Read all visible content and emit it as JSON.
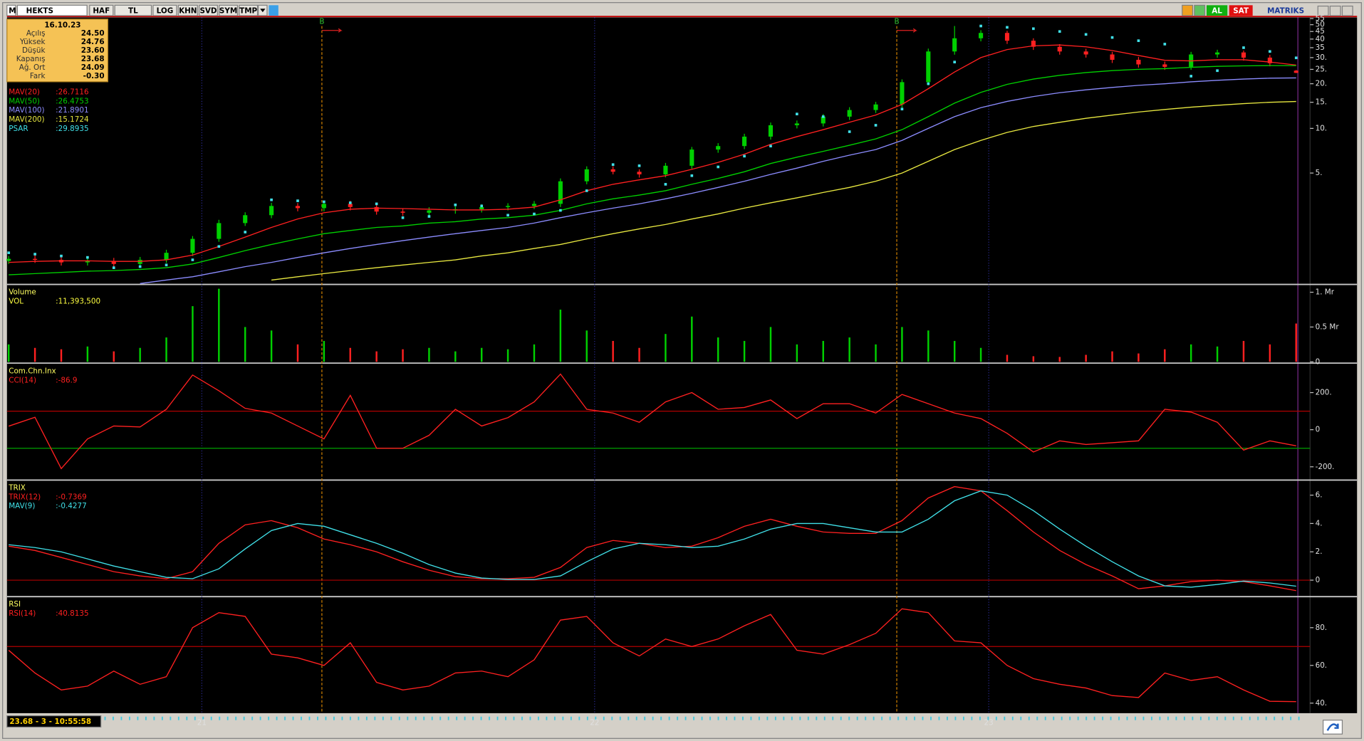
{
  "toolbar": {
    "logo": "M",
    "symbol": "HEKTS",
    "buttons": [
      "HAF",
      "TL",
      "LOG",
      "KHN",
      "SVD",
      "SYM",
      "TMP"
    ],
    "buy": "AL",
    "sell": "SAT",
    "brand": "MATRIKS"
  },
  "info": {
    "date": "16.10.23",
    "rows": [
      [
        "Açılış",
        "24.50"
      ],
      [
        "Yüksek",
        "24.76"
      ],
      [
        "Düşük",
        "23.60"
      ],
      [
        "Kapanış",
        "23.68"
      ],
      [
        "Ağ. Ort",
        "24.09"
      ],
      [
        "Fark",
        "-0.30"
      ]
    ]
  },
  "status": "23.68 - 3 - 10:55:58",
  "time_axis": {
    "labels": [
      {
        "value": 7.35,
        "label": "21"
      },
      {
        "value": 22.3,
        "label": "22"
      },
      {
        "value": 37.3,
        "label": "23"
      }
    ]
  },
  "signals": [
    {
      "value": 11.92,
      "label": "B"
    },
    {
      "value": 33.8,
      "label": "B"
    }
  ],
  "panels": [
    {
      "type": "candlestick",
      "log_scale": true,
      "ylim": [
        0.9,
        56
      ],
      "yticks": [
        {
          "value": 5,
          "label": "5."
        },
        {
          "value": 10,
          "label": "10."
        },
        {
          "value": 15,
          "label": "15."
        },
        {
          "value": 20,
          "label": "20."
        },
        {
          "value": 25,
          "label": "25."
        },
        {
          "value": 30,
          "label": "30."
        },
        35,
        40,
        45,
        50,
        55
      ],
      "candles": {
        "up_color": "#00d000",
        "down_color": "#ff2020",
        "open": [
          1.28,
          1.32,
          1.3,
          1.25,
          1.28,
          1.22,
          1.3,
          1.45,
          1.8,
          2.3,
          2.6,
          3.0,
          2.9,
          3.1,
          2.95,
          2.75,
          2.7,
          2.8,
          2.85,
          2.95,
          3.0,
          3.1,
          4.4,
          5.3,
          5.1,
          4.9,
          5.6,
          7.2,
          7.6,
          8.8,
          10.5,
          10.8,
          12.0,
          13.3,
          14.5,
          20.5,
          33.0,
          40.5,
          44.0,
          39.0,
          35.5,
          33.0,
          31.5,
          29.0,
          27.0,
          26.0,
          31.5,
          32.5,
          30.0,
          24.5
        ],
        "high": [
          1.38,
          1.39,
          1.37,
          1.34,
          1.34,
          1.36,
          1.52,
          1.88,
          2.42,
          2.72,
          3.15,
          3.14,
          3.25,
          3.25,
          3.1,
          2.88,
          2.94,
          2.98,
          3.08,
          3.13,
          3.24,
          4.6,
          5.55,
          5.55,
          5.3,
          5.85,
          7.5,
          7.95,
          9.2,
          10.95,
          11.3,
          12.5,
          13.9,
          15.1,
          21.4,
          34.5,
          49.0,
          45.9,
          45.5,
          40.5,
          37.0,
          34.4,
          32.8,
          30.3,
          28.2,
          32.8,
          33.9,
          33.5,
          31.3,
          24.76
        ],
        "low": [
          1.22,
          1.24,
          1.19,
          1.19,
          1.16,
          1.16,
          1.24,
          1.38,
          1.72,
          2.2,
          2.48,
          2.76,
          2.76,
          2.8,
          2.62,
          2.57,
          2.57,
          2.66,
          2.71,
          2.8,
          2.86,
          2.95,
          4.2,
          4.9,
          4.66,
          4.68,
          5.35,
          6.85,
          7.25,
          8.4,
          10.0,
          10.3,
          11.4,
          12.7,
          13.8,
          19.5,
          31.4,
          38.6,
          37.1,
          33.8,
          31.4,
          30.0,
          27.6,
          25.7,
          24.8,
          24.8,
          30.0,
          28.6,
          26.2,
          23.6
        ],
        "close": [
          1.32,
          1.3,
          1.25,
          1.28,
          1.22,
          1.3,
          1.45,
          1.8,
          2.3,
          2.6,
          3.0,
          2.9,
          3.1,
          2.95,
          2.75,
          2.7,
          2.8,
          2.85,
          2.95,
          3.0,
          3.1,
          4.4,
          5.3,
          5.1,
          4.9,
          5.6,
          7.2,
          7.6,
          8.8,
          10.5,
          10.8,
          12.0,
          13.3,
          14.5,
          20.5,
          33.0,
          40.5,
          44.0,
          39.0,
          35.5,
          33.0,
          31.5,
          29.0,
          27.0,
          26.0,
          31.5,
          32.5,
          30.0,
          27.5,
          23.68
        ]
      },
      "series": [
        {
          "name": "MAV(20)",
          "value_label": ":26.7116",
          "color": "#ff2020",
          "style": "line",
          "values": [
            1.25,
            1.27,
            1.28,
            1.28,
            1.27,
            1.27,
            1.3,
            1.4,
            1.6,
            1.85,
            2.15,
            2.45,
            2.7,
            2.85,
            2.9,
            2.88,
            2.85,
            2.82,
            2.82,
            2.85,
            2.95,
            3.3,
            3.8,
            4.2,
            4.5,
            4.8,
            5.3,
            5.9,
            6.7,
            7.8,
            8.8,
            9.8,
            11.0,
            12.3,
            14.5,
            18.5,
            24.0,
            30.0,
            34.0,
            36.0,
            36.5,
            35.5,
            33.5,
            31.0,
            28.8,
            28.5,
            29.0,
            29.0,
            28.0,
            26.71
          ]
        },
        {
          "name": "MAV(50)",
          "value_label": ":26.4753",
          "color": "#00d000",
          "style": "line",
          "values": [
            1.03,
            1.05,
            1.07,
            1.09,
            1.1,
            1.12,
            1.15,
            1.22,
            1.35,
            1.5,
            1.65,
            1.8,
            1.95,
            2.05,
            2.15,
            2.2,
            2.3,
            2.35,
            2.45,
            2.5,
            2.6,
            2.8,
            3.1,
            3.35,
            3.55,
            3.8,
            4.2,
            4.6,
            5.1,
            5.8,
            6.4,
            7.0,
            7.7,
            8.5,
            9.8,
            12.0,
            14.8,
            17.5,
            19.8,
            21.5,
            22.8,
            23.8,
            24.5,
            25.0,
            25.3,
            25.8,
            26.2,
            26.4,
            26.5,
            26.48
          ]
        },
        {
          "name": "MAV(100)",
          "value_label": ":21.8901",
          "color": "#8c8cff",
          "style": "line",
          "values": [
            null,
            null,
            null,
            null,
            null,
            0.9,
            0.95,
            1.0,
            1.08,
            1.17,
            1.25,
            1.35,
            1.45,
            1.55,
            1.65,
            1.75,
            1.85,
            1.95,
            2.05,
            2.15,
            2.3,
            2.5,
            2.7,
            2.9,
            3.1,
            3.35,
            3.65,
            4.0,
            4.4,
            4.9,
            5.4,
            6.0,
            6.6,
            7.2,
            8.3,
            10.0,
            12.0,
            13.8,
            15.2,
            16.4,
            17.4,
            18.2,
            18.9,
            19.5,
            20.0,
            20.6,
            21.1,
            21.5,
            21.8,
            21.89
          ]
        },
        {
          "name": "MAV(200)",
          "value_label": ":15.1724",
          "color": "#e8e840",
          "style": "line",
          "values": [
            null,
            null,
            null,
            null,
            null,
            null,
            null,
            null,
            null,
            null,
            0.95,
            1.0,
            1.05,
            1.1,
            1.15,
            1.2,
            1.25,
            1.3,
            1.38,
            1.45,
            1.55,
            1.65,
            1.8,
            1.95,
            2.1,
            2.25,
            2.45,
            2.65,
            2.9,
            3.15,
            3.4,
            3.7,
            4.0,
            4.4,
            5.0,
            6.0,
            7.2,
            8.3,
            9.4,
            10.3,
            11.0,
            11.7,
            12.3,
            12.9,
            13.4,
            13.9,
            14.3,
            14.7,
            15.0,
            15.17
          ]
        },
        {
          "name": "PSAR",
          "value_label": ":29.8935",
          "color": "#40e0e8",
          "style": "dots",
          "values": [
            1.45,
            1.42,
            1.38,
            1.35,
            1.15,
            1.17,
            1.2,
            1.3,
            1.6,
            2.0,
            3.3,
            3.25,
            3.2,
            3.15,
            3.1,
            2.5,
            2.55,
            3.05,
            3.0,
            2.6,
            2.65,
            2.8,
            3.8,
            5.7,
            5.6,
            4.2,
            4.8,
            5.5,
            6.5,
            7.6,
            12.5,
            12.0,
            9.5,
            10.5,
            13.5,
            20.0,
            28.0,
            49.0,
            48.0,
            47.0,
            45.0,
            43.0,
            41.0,
            39.0,
            37.0,
            22.5,
            24.5,
            35.0,
            33.0,
            29.89
          ]
        }
      ]
    },
    {
      "type": "bar",
      "title": "Volume",
      "ylim": [
        0,
        1100000
      ],
      "yticks": [
        0,
        {
          "value": 500000,
          "label": "0.5 Mr"
        },
        {
          "value": 1000000,
          "label": "1. Mr"
        }
      ],
      "series": [
        {
          "name": "VOL",
          "value_label": ":11,393,500",
          "color": "#ffff40",
          "style": "bars",
          "values": [
            250000,
            200000,
            180000,
            220000,
            150000,
            200000,
            350000,
            800000,
            1050000,
            500000,
            450000,
            250000,
            300000,
            200000,
            150000,
            180000,
            200000,
            150000,
            200000,
            180000,
            250000,
            750000,
            450000,
            300000,
            200000,
            400000,
            650000,
            350000,
            300000,
            500000,
            250000,
            300000,
            350000,
            250000,
            500000,
            450000,
            300000,
            200000,
            100000,
            80000,
            70000,
            100000,
            150000,
            120000,
            180000,
            250000,
            220000,
            300000,
            250000,
            550000
          ]
        }
      ]
    },
    {
      "type": "line",
      "title": "Com.Chn.Inx",
      "ylim": [
        -267,
        352
      ],
      "yticks": [
        {
          "value": 200,
          "label": "200."
        },
        0,
        {
          "value": -200,
          "label": "-200."
        }
      ],
      "levels": [
        {
          "value": 100,
          "color": "#b00000"
        },
        {
          "value": -100,
          "color": "#00a000"
        }
      ],
      "series": [
        {
          "name": "CCI(14)",
          "value_label": ":-86.9",
          "color": "#ff2020",
          "style": "line",
          "values": [
            19,
            67,
            -210,
            -50,
            20,
            15,
            110,
            295,
            210,
            115,
            90,
            20,
            -50,
            185,
            -100,
            -100,
            -30,
            110,
            20,
            65,
            150,
            300,
            110,
            90,
            40,
            150,
            200,
            110,
            120,
            160,
            60,
            140,
            140,
            90,
            190,
            140,
            90,
            60,
            -20,
            -120,
            -60,
            -80,
            -70,
            -60,
            110,
            95,
            40,
            -110,
            -60,
            -86.9
          ]
        }
      ]
    },
    {
      "type": "line",
      "title": "TRIX",
      "ylim": [
        -1.1,
        7.0
      ],
      "yticks": [
        {
          "value": 6,
          "label": "6."
        },
        {
          "value": 4,
          "label": "4."
        },
        {
          "value": 2,
          "label": "2."
        },
        0
      ],
      "levels": [
        {
          "value": 0,
          "color": "#b00000"
        }
      ],
      "series": [
        {
          "name": "TRIX(12)",
          "value_label": ":-0.7369",
          "color": "#ff2020",
          "style": "line",
          "values": [
            2.4,
            2.1,
            1.6,
            1.1,
            0.6,
            0.3,
            0.1,
            0.6,
            2.6,
            3.9,
            4.2,
            3.7,
            2.9,
            2.5,
            2.0,
            1.3,
            0.7,
            0.25,
            0.1,
            0.1,
            0.2,
            0.9,
            2.3,
            2.8,
            2.6,
            2.3,
            2.4,
            3.0,
            3.8,
            4.3,
            3.8,
            3.4,
            3.3,
            3.3,
            4.2,
            5.8,
            6.6,
            6.3,
            4.9,
            3.4,
            2.1,
            1.1,
            0.3,
            -0.6,
            -0.4,
            -0.1,
            0.0,
            -0.1,
            -0.4,
            -0.7369
          ]
        },
        {
          "name": "MAV(9)",
          "value_label": ":-0.4277",
          "color": "#40e0e8",
          "style": "line",
          "values": [
            2.5,
            2.3,
            2.0,
            1.5,
            1.0,
            0.6,
            0.2,
            0.1,
            0.8,
            2.2,
            3.5,
            4.0,
            3.8,
            3.2,
            2.6,
            1.9,
            1.1,
            0.5,
            0.15,
            0.05,
            0.05,
            0.3,
            1.3,
            2.2,
            2.6,
            2.5,
            2.3,
            2.4,
            2.9,
            3.6,
            4.0,
            4.0,
            3.7,
            3.4,
            3.4,
            4.3,
            5.6,
            6.3,
            6.0,
            4.9,
            3.6,
            2.4,
            1.3,
            0.3,
            -0.4,
            -0.5,
            -0.3,
            -0.06,
            -0.2,
            -0.4277
          ]
        }
      ]
    },
    {
      "type": "line",
      "title": "RSI",
      "ylim": [
        35.6,
        96
      ],
      "yticks": [
        {
          "value": 80,
          "label": "80."
        },
        {
          "value": 60,
          "label": "60."
        },
        {
          "value": 40,
          "label": "40."
        }
      ],
      "levels": [
        {
          "value": 70,
          "color": "#b00000"
        }
      ],
      "series": [
        {
          "name": "RSI(14)",
          "value_label": ":40.8135",
          "color": "#ff2020",
          "style": "line",
          "values": [
            68,
            56,
            47,
            49,
            57,
            50,
            54,
            80,
            88,
            86,
            66,
            64,
            60,
            72,
            51,
            47,
            49,
            56,
            57,
            54,
            63,
            84,
            86,
            72,
            65,
            74,
            70,
            74,
            81,
            87,
            68,
            66,
            71,
            77,
            90,
            88,
            73,
            72,
            60,
            53,
            50,
            48,
            44,
            43,
            56,
            52,
            54,
            47,
            41,
            40.8135
          ]
        }
      ]
    }
  ]
}
